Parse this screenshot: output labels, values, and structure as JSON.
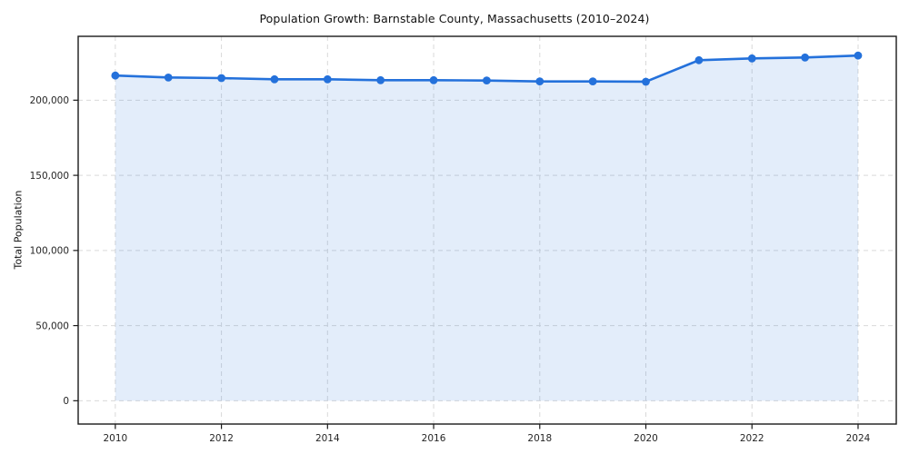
{
  "figure": {
    "background": "#ffffff"
  },
  "chart_data": {
    "type": "line",
    "title": "Population Growth: Barnstable County, Massachusetts (2010–2024)",
    "xlabel": "",
    "ylabel": "Total Population",
    "x": [
      2010,
      2011,
      2012,
      2013,
      2014,
      2015,
      2016,
      2017,
      2018,
      2019,
      2020,
      2021,
      2022,
      2023,
      2024
    ],
    "series": [
      {
        "name": "Total Population",
        "values": [
          216400,
          215100,
          214700,
          213900,
          213900,
          213300,
          213300,
          213100,
          212500,
          212500,
          212300,
          226600,
          227800,
          228400,
          229700
        ]
      }
    ],
    "marker": "circle",
    "line_color": "#2471db",
    "fill_area_below_line": true,
    "fill_opacity": 0.13,
    "grid": true,
    "grid_style": "dashed",
    "grid_color": "#d9d9d9",
    "spine_color": "#1a1a1a",
    "xlim": [
      2009.3,
      2024.72
    ],
    "ylim": [
      -15500,
      242500
    ],
    "xticks": [
      2010,
      2012,
      2014,
      2016,
      2018,
      2020,
      2022,
      2024
    ],
    "xtick_labels": [
      "2010",
      "2012",
      "2014",
      "2016",
      "2018",
      "2020",
      "2022",
      "2024"
    ],
    "yticks": [
      0,
      50000,
      100000,
      150000,
      200000
    ],
    "ytick_labels": [
      "0",
      "50,000",
      "100,000",
      "150,000",
      "200,000"
    ]
  }
}
